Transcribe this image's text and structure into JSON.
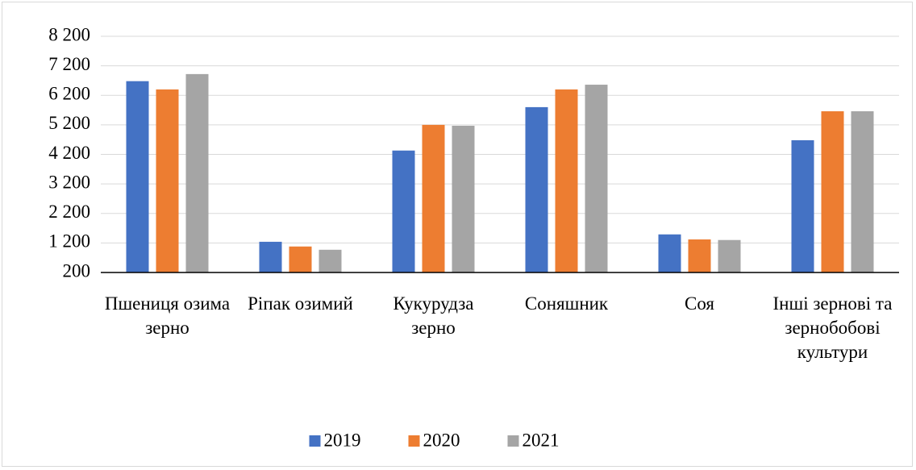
{
  "chart_data": {
    "type": "bar",
    "categories": [
      "Пшениця озима зерно",
      "Ріпак озимий",
      "Кукурудза зерно",
      "Соняшник",
      "Соя",
      "Інші зернові та зернобобові культури"
    ],
    "series": [
      {
        "name": "2019",
        "color": "#4472c4",
        "values": [
          6680,
          1240,
          4330,
          5800,
          1490,
          4680
        ]
      },
      {
        "name": "2020",
        "color": "#ed7d31",
        "values": [
          6400,
          1080,
          5200,
          6400,
          1320,
          5660
        ]
      },
      {
        "name": "2021",
        "color": "#a5a5a5",
        "values": [
          6920,
          970,
          5170,
          6560,
          1300,
          5660
        ]
      }
    ],
    "ylim": [
      200,
      8200
    ],
    "yticks": [
      200,
      {
        "value": 1200,
        "label": "1 200"
      },
      {
        "value": 2200,
        "label": "2 200"
      },
      {
        "value": 3200,
        "label": "3 200"
      },
      {
        "value": 4200,
        "label": "4 200"
      },
      {
        "value": 5200,
        "label": "5 200"
      },
      {
        "value": 6200,
        "label": "6 200"
      },
      {
        "value": 7200,
        "label": "7 200"
      },
      {
        "value": 8200,
        "label": "8 200"
      }
    ],
    "grid": true,
    "legend": "bottom"
  }
}
